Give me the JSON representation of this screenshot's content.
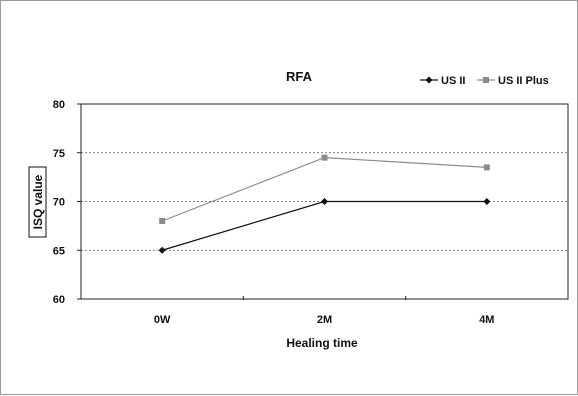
{
  "chart_data": {
    "type": "line",
    "title": "RFA",
    "xlabel": "Healing time",
    "ylabel": "ISQ value",
    "categories": [
      "0W",
      "2M",
      "4M"
    ],
    "ylim": [
      60,
      80
    ],
    "yticks": [
      60,
      65,
      70,
      75,
      80
    ],
    "grid": "horizontal dotted",
    "legend_position": "top-right",
    "series": [
      {
        "name": "US II",
        "values": [
          65,
          70,
          70
        ],
        "color": "#111111",
        "marker": "diamond"
      },
      {
        "name": "US II Plus",
        "values": [
          68,
          74.5,
          73.5
        ],
        "color": "#8c8c8c",
        "marker": "square"
      }
    ]
  }
}
